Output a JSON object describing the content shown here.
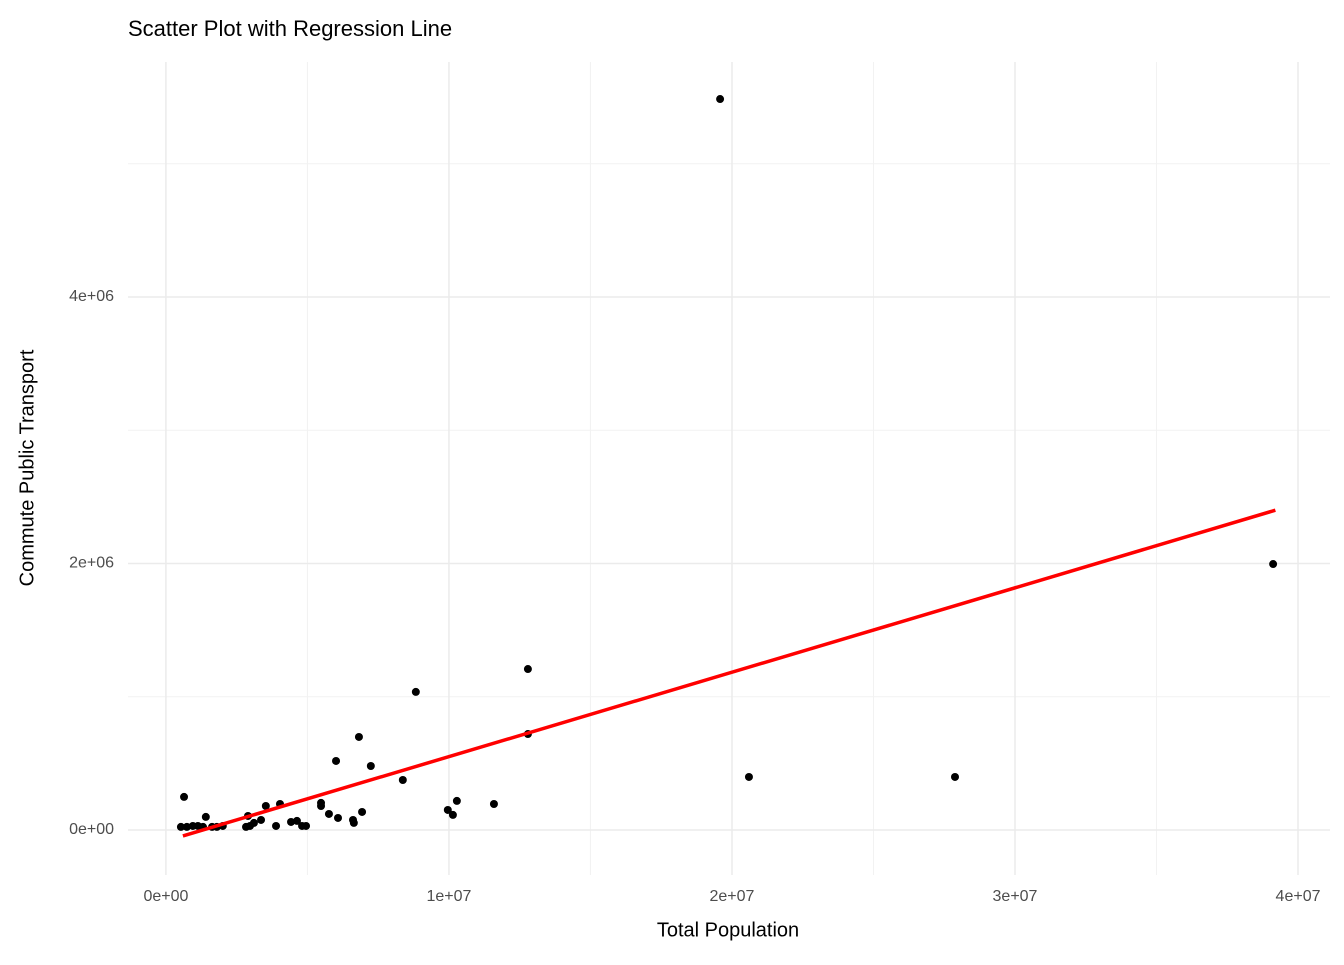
{
  "chart_data": {
    "type": "scatter",
    "title": "Scatter Plot with Regression Line",
    "xlabel": "Total Population",
    "ylabel": "Commute Public Transport",
    "x": [
      19580000,
      39120000,
      12790000,
      8830000,
      6820000,
      12790000,
      6010000,
      7240000,
      8370000,
      20600000,
      27880000,
      11590000,
      10280000,
      9960000,
      10140000,
      640000,
      1410000,
      2900000,
      3530000,
      4030000,
      5480000,
      5480000,
      5760000,
      6080000,
      6930000,
      6610000,
      6640000,
      4420000,
      4630000,
      4810000,
      4950000,
      3890000,
      3360000,
      3110000,
      2970000,
      2830000,
      530000,
      740000,
      950000,
      1130000,
      1310000,
      1630000,
      1800000,
      2010000
    ],
    "values": [
      5486000,
      1996000,
      1208000,
      1036000,
      698000,
      720000,
      518000,
      480000,
      375000,
      398000,
      398000,
      195000,
      218000,
      150000,
      113000,
      248000,
      98000,
      105000,
      180000,
      195000,
      203000,
      180000,
      120000,
      90000,
      135000,
      75000,
      53000,
      60000,
      68000,
      30000,
      30000,
      30000,
      75000,
      53000,
      30000,
      23000,
      23000,
      23000,
      30000,
      30000,
      23000,
      23000,
      23000,
      30000
    ],
    "color": "#000000",
    "regression": {
      "x": [
        600000,
        39200000
      ],
      "values": [
        -45000,
        2400000
      ],
      "color": "#ff0000"
    },
    "xlim": [
      -1340000,
      41130000
    ],
    "ylim": [
      -338000,
      5764000
    ],
    "xticks": [
      {
        "value": 0,
        "label": "0e+00"
      },
      {
        "value": 10000000,
        "label": "1e+07"
      },
      {
        "value": 20000000,
        "label": "2e+07"
      },
      {
        "value": 30000000,
        "label": "3e+07"
      },
      {
        "value": 40000000,
        "label": "4e+07"
      }
    ],
    "yticks": [
      {
        "value": 0,
        "label": "0e+00"
      },
      {
        "value": 2000000,
        "label": "2e+06"
      },
      {
        "value": 4000000,
        "label": "4e+06"
      }
    ],
    "xminorticks": [
      5000000,
      15000000,
      25000000,
      35000000
    ],
    "yminorticks": [
      1000000,
      3000000,
      5000000
    ],
    "grid": true
  }
}
